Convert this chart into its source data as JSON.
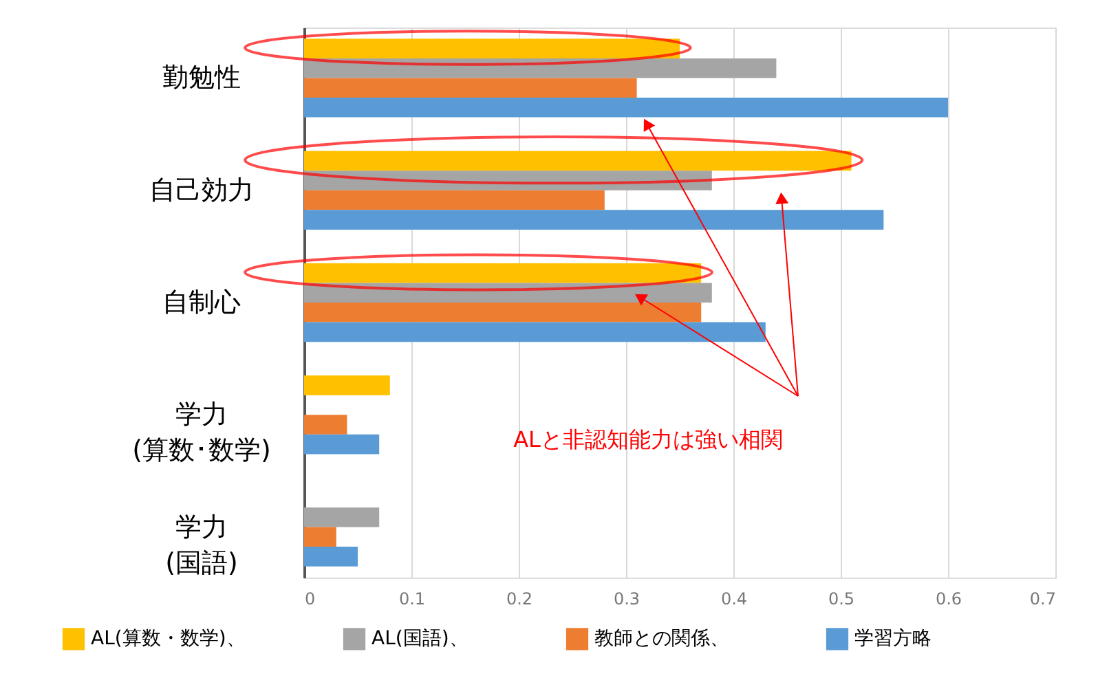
{
  "chart_data": {
    "type": "bar",
    "orientation": "horizontal",
    "categories": [
      "勤勉性",
      "自己効力",
      "自制心",
      "学力\n(算数･数学)",
      "学力\n(国語)"
    ],
    "series": [
      {
        "name": "AL(算数・数学)、",
        "color": "#ffc000",
        "values": [
          0.35,
          0.51,
          0.37,
          0.08,
          null
        ]
      },
      {
        "name": "AL(国語)、",
        "color": "#a5a5a5",
        "values": [
          0.44,
          0.38,
          0.38,
          null,
          0.07
        ]
      },
      {
        "name": "教師との関係、",
        "color": "#ed7d31",
        "values": [
          0.31,
          0.28,
          0.37,
          0.04,
          0.03
        ]
      },
      {
        "name": "学習方略",
        "color": "#5b9bd5",
        "values": [
          0.6,
          0.54,
          0.43,
          0.07,
          0.05
        ]
      }
    ],
    "xlim": [
      0,
      0.7
    ],
    "xticks": [
      0,
      0.1,
      0.2,
      0.3,
      0.4,
      0.5,
      0.6,
      0.7
    ],
    "grid": "x",
    "legend": "bottom",
    "annotations": [
      "ALと非認知能力は強い相関"
    ]
  }
}
